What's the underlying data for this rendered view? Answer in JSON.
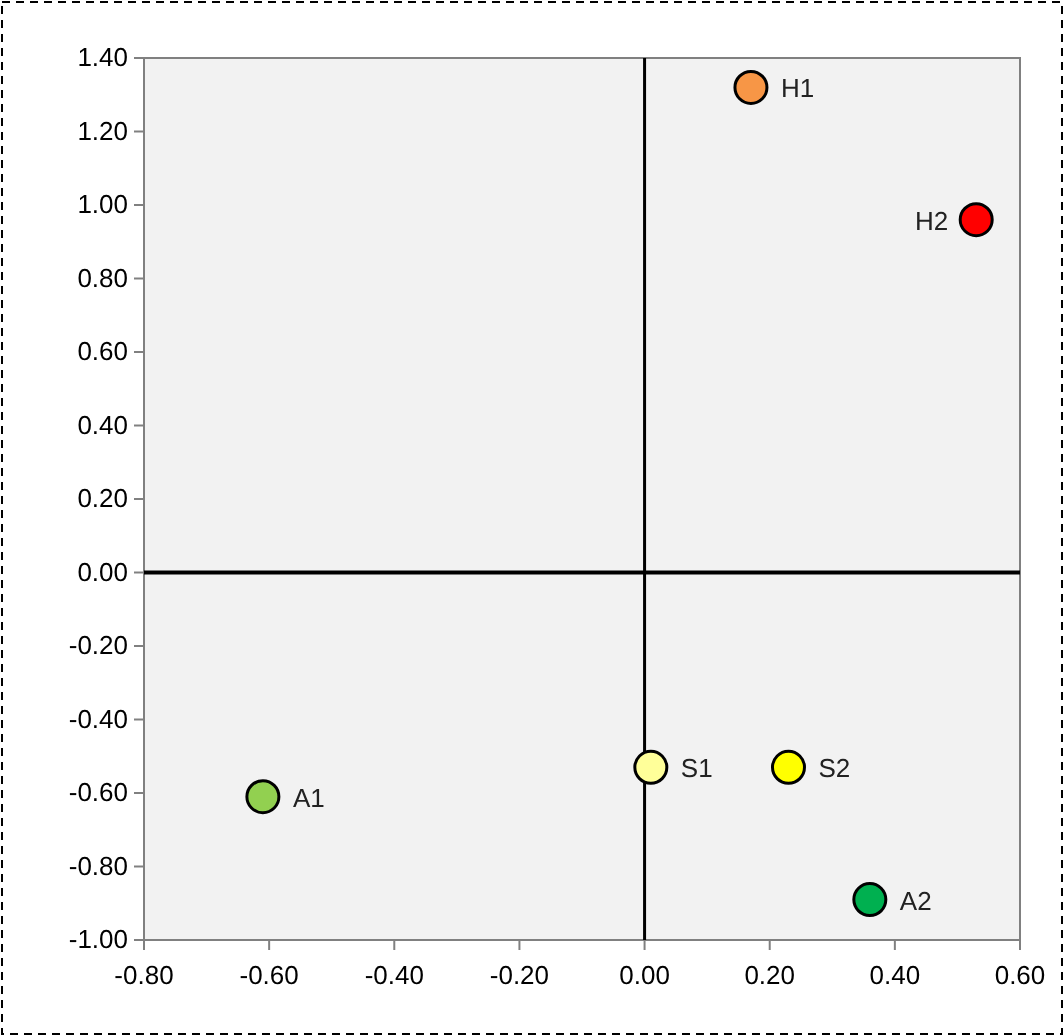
{
  "chart_data": {
    "type": "scatter",
    "marker": "circle",
    "grid": false,
    "xlim": [
      -0.8,
      0.6
    ],
    "ylim": [
      -1.0,
      1.4
    ],
    "xticks": [
      {
        "value": -0.8,
        "label": "-0.80"
      },
      {
        "value": -0.6,
        "label": "-0.60"
      },
      {
        "value": -0.4,
        "label": "-0.40"
      },
      {
        "value": -0.2,
        "label": "-0.20"
      },
      {
        "value": 0,
        "label": "0.00"
      },
      {
        "value": 0.2,
        "label": "0.20"
      },
      {
        "value": 0.4,
        "label": "0.40"
      },
      {
        "value": 0.6,
        "label": "0.60"
      }
    ],
    "yticks": [
      {
        "value": -1.0,
        "label": "-1.00"
      },
      {
        "value": -0.8,
        "label": "-0.80"
      },
      {
        "value": -0.6,
        "label": "-0.60"
      },
      {
        "value": -0.4,
        "label": "-0.40"
      },
      {
        "value": -0.2,
        "label": "-0.20"
      },
      {
        "value": 0,
        "label": "0.00"
      },
      {
        "value": 0.2,
        "label": "0.20"
      },
      {
        "value": 0.4,
        "label": "0.40"
      },
      {
        "value": 0.6,
        "label": "0.60"
      },
      {
        "value": 0.8,
        "label": "0.80"
      },
      {
        "value": 1.0,
        "label": "1.00"
      },
      {
        "value": 1.2,
        "label": "1.20"
      },
      {
        "value": 1.4,
        "label": "1.40"
      }
    ],
    "series": [
      {
        "name": "H1",
        "color": "#f79646",
        "x": [
          0.17
        ],
        "values": [
          1.32
        ]
      },
      {
        "name": "H2",
        "color": "#ff0000",
        "x": [
          0.53
        ],
        "values": [
          0.96
        ]
      },
      {
        "name": "A1",
        "color": "#92d050",
        "x": [
          -0.61
        ],
        "values": [
          -0.61
        ]
      },
      {
        "name": "S1",
        "color": "#ffff99",
        "x": [
          0.01
        ],
        "values": [
          -0.53
        ]
      },
      {
        "name": "S2",
        "color": "#ffff00",
        "x": [
          0.23
        ],
        "values": [
          -0.53
        ]
      },
      {
        "name": "A2",
        "color": "#00b050",
        "x": [
          0.36
        ],
        "values": [
          -0.89
        ]
      }
    ]
  }
}
